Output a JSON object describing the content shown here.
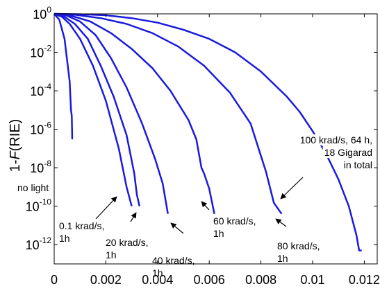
{
  "chart_data": {
    "type": "line",
    "title": "",
    "xlabel": "",
    "ylabel": {
      "prefix": "1-",
      "italic": "F",
      "suffix": "(RIE)"
    },
    "xlim": [
      0,
      0.0125
    ],
    "ylim": [
      1e-13,
      1
    ],
    "yscale": "log",
    "grid": false,
    "legend": "none",
    "x_ticks": [
      "0",
      "0.002",
      "0.004",
      "0.006",
      "0.008",
      "0.01",
      "0.012"
    ],
    "x_tick_values": [
      0,
      0.002,
      0.004,
      0.006,
      0.008,
      0.01,
      0.012
    ],
    "y_ticks": [
      {
        "base": "10",
        "exp": "0",
        "value": 1
      },
      {
        "base": "10",
        "exp": "-2",
        "value": 0.01
      },
      {
        "base": "10",
        "exp": "-4",
        "value": 0.0001
      },
      {
        "base": "10",
        "exp": "-6",
        "value": 1e-06
      },
      {
        "base": "10",
        "exp": "-8",
        "value": 1e-08
      },
      {
        "base": "10",
        "exp": "-10",
        "value": 1e-10
      },
      {
        "base": "10",
        "exp": "-12",
        "value": 1e-12
      }
    ],
    "line_color": "#1a1adc",
    "series": [
      {
        "x": [
          0,
          0.0002,
          0.0004,
          0.0006,
          0.00065,
          0.00068,
          0.0007
        ],
        "y": [
          1,
          0.5,
          0.05,
          0.0003,
          1e-05,
          5e-06,
          3e-07
        ]
      },
      {
        "x": [
          0,
          0.0003,
          0.0006,
          0.001,
          0.0015,
          0.002,
          0.0025,
          0.0028,
          0.003
        ],
        "y": [
          1,
          0.7,
          0.3,
          0.05,
          0.002,
          3e-05,
          1e-07,
          1e-09,
          1e-10
        ]
      },
      {
        "x": [
          0,
          0.0004,
          0.0008,
          0.0013,
          0.0018,
          0.0023,
          0.0028,
          0.0031,
          0.0032,
          0.0033
        ],
        "y": [
          1,
          0.7,
          0.3,
          0.05,
          0.002,
          5e-05,
          5e-07,
          5e-09,
          4e-10,
          1e-10
        ]
      },
      {
        "x": [
          0,
          0.0005,
          0.001,
          0.0016,
          0.0022,
          0.0028,
          0.0034,
          0.0039,
          0.0042,
          0.0044
        ],
        "y": [
          1,
          0.8,
          0.4,
          0.08,
          0.005,
          0.00015,
          2e-06,
          3e-08,
          1.5e-09,
          4e-11
        ]
      },
      {
        "x": [
          0,
          0.0006,
          0.0014,
          0.0022,
          0.003,
          0.0038,
          0.0045,
          0.0052,
          0.0055,
          0.0057,
          0.0058,
          0.006,
          0.0062
        ],
        "y": [
          1,
          0.85,
          0.4,
          0.1,
          0.015,
          0.0015,
          0.0001,
          3e-06,
          3e-07,
          1e-08,
          5e-09,
          8e-10,
          4e-11
        ]
      },
      {
        "x": [
          0,
          0.0008,
          0.0018,
          0.0028,
          0.0038,
          0.0048,
          0.0058,
          0.0068,
          0.0076,
          0.0082,
          0.0085,
          0.0088
        ],
        "y": [
          1,
          0.9,
          0.6,
          0.3,
          0.1,
          0.02,
          0.002,
          8e-05,
          2e-06,
          6e-09,
          1.5e-10,
          4e-11
        ]
      },
      {
        "x": [
          0,
          0.001,
          0.002,
          0.003,
          0.004,
          0.005,
          0.006,
          0.007,
          0.008,
          0.009,
          0.0095,
          0.01,
          0.0105,
          0.011,
          0.0114,
          0.0117,
          0.0118,
          0.0119
        ],
        "y": [
          1,
          0.95,
          0.85,
          0.6,
          0.35,
          0.15,
          0.05,
          0.01,
          0.001,
          5e-05,
          8e-06,
          8e-07,
          6e-08,
          2.5e-09,
          1e-10,
          3e-12,
          5e-13,
          5e-13
        ]
      }
    ],
    "annotations": [
      {
        "lines": [
          "no light"
        ]
      },
      {
        "lines": [
          "0.1 krad/s,",
          "1h"
        ]
      },
      {
        "lines": [
          "20 krad/s,",
          "1h"
        ]
      },
      {
        "lines": [
          "40 krad/s,",
          "1h"
        ]
      },
      {
        "lines": [
          "60 krad/s,",
          "1h"
        ]
      },
      {
        "lines": [
          "80 krad/s,",
          "1h"
        ]
      },
      {
        "lines": [
          "100 krad/s, 64 h,",
          "18 Gigarad",
          "in total"
        ]
      }
    ]
  }
}
